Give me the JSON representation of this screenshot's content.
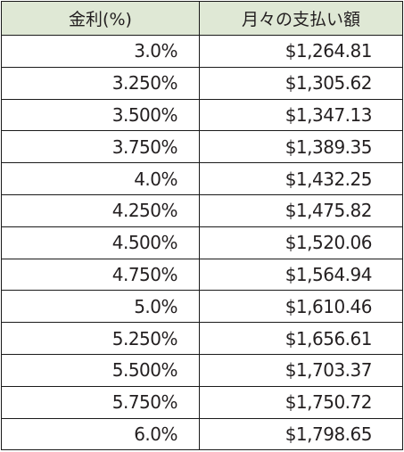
{
  "table": {
    "headers": {
      "rate": "金利(%)",
      "payment": "月々の支払い額"
    },
    "rows": [
      {
        "rate": "3.0%",
        "payment": "$1,264.81"
      },
      {
        "rate": "3.250%",
        "payment": "$1,305.62"
      },
      {
        "rate": "3.500%",
        "payment": "$1,347.13"
      },
      {
        "rate": "3.750%",
        "payment": "$1,389.35"
      },
      {
        "rate": "4.0%",
        "payment": "$1,432.25"
      },
      {
        "rate": "4.250%",
        "payment": "$1,475.82"
      },
      {
        "rate": "4.500%",
        "payment": "$1,520.06"
      },
      {
        "rate": "4.750%",
        "payment": "$1,564.94"
      },
      {
        "rate": "5.0%",
        "payment": "$1,610.46"
      },
      {
        "rate": "5.250%",
        "payment": "$1,656.61"
      },
      {
        "rate": "5.500%",
        "payment": "$1,703.37"
      },
      {
        "rate": "5.750%",
        "payment": "$1,750.72"
      },
      {
        "rate": "6.0%",
        "payment": "$1,798.65"
      }
    ]
  },
  "colors": {
    "header_background": "#dfe8d5",
    "border": "#1a1a1a",
    "text": "#231f20"
  }
}
